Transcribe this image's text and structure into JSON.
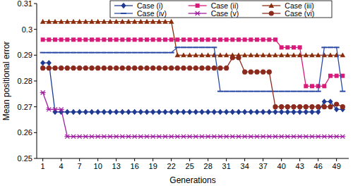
{
  "chart_data": {
    "type": "line",
    "x_label": "Generations",
    "y_label": "Mean positional error",
    "x": [
      1,
      2,
      3,
      4,
      5,
      6,
      7,
      8,
      9,
      10,
      11,
      12,
      13,
      14,
      15,
      16,
      17,
      18,
      19,
      20,
      21,
      22,
      23,
      24,
      25,
      26,
      27,
      28,
      29,
      30,
      31,
      32,
      33,
      34,
      35,
      36,
      37,
      38,
      39,
      40,
      41,
      42,
      43,
      44,
      45,
      46,
      47,
      48,
      49,
      50
    ],
    "xlim": [
      0,
      51
    ],
    "xticks": [
      1,
      4,
      7,
      10,
      13,
      16,
      19,
      22,
      25,
      28,
      31,
      34,
      37,
      40,
      43,
      46,
      49
    ],
    "ylim": [
      0.25,
      0.31
    ],
    "yticks": [
      0.25,
      0.26,
      0.27,
      0.28,
      0.29,
      0.3,
      0.31
    ],
    "grid": false,
    "legend": "top",
    "series": [
      {
        "name": "Case (i)",
        "color": "#1f3a93",
        "marker": "diamond",
        "values": [
          0.287,
          0.287,
          0.268,
          0.268,
          0.268,
          0.268,
          0.268,
          0.268,
          0.268,
          0.268,
          0.268,
          0.268,
          0.268,
          0.268,
          0.268,
          0.268,
          0.268,
          0.268,
          0.268,
          0.268,
          0.268,
          0.268,
          0.268,
          0.268,
          0.268,
          0.268,
          0.268,
          0.268,
          0.268,
          0.268,
          0.268,
          0.268,
          0.268,
          0.268,
          0.268,
          0.268,
          0.268,
          0.268,
          0.268,
          0.268,
          0.268,
          0.268,
          0.268,
          0.268,
          0.268,
          0.268,
          0.272,
          0.272,
          0.269,
          0.269
        ]
      },
      {
        "name": "Case (ii)",
        "color": "#d81b7a",
        "marker": "square",
        "values": [
          0.296,
          0.296,
          0.296,
          0.296,
          0.296,
          0.296,
          0.296,
          0.296,
          0.296,
          0.296,
          0.296,
          0.296,
          0.296,
          0.296,
          0.296,
          0.296,
          0.296,
          0.296,
          0.296,
          0.296,
          0.296,
          0.296,
          0.296,
          0.296,
          0.296,
          0.296,
          0.296,
          0.296,
          0.296,
          0.296,
          0.296,
          0.296,
          0.296,
          0.296,
          0.296,
          0.296,
          0.296,
          0.296,
          0.296,
          0.293,
          0.293,
          0.293,
          0.293,
          0.278,
          0.278,
          0.278,
          0.278,
          0.282,
          0.282,
          0.282
        ]
      },
      {
        "name": "Case (iii)",
        "color": "#8b2c0a",
        "marker": "triangle",
        "values": [
          0.303,
          0.303,
          0.303,
          0.303,
          0.303,
          0.303,
          0.303,
          0.303,
          0.303,
          0.303,
          0.303,
          0.303,
          0.303,
          0.303,
          0.303,
          0.303,
          0.303,
          0.303,
          0.303,
          0.303,
          0.303,
          0.303,
          0.29,
          0.29,
          0.29,
          0.29,
          0.29,
          0.29,
          0.29,
          0.29,
          0.29,
          0.29,
          0.29,
          0.29,
          0.29,
          0.29,
          0.29,
          0.29,
          0.29,
          0.29,
          0.29,
          0.29,
          0.29,
          0.29,
          0.29,
          0.29,
          0.29,
          0.29,
          0.29,
          0.29
        ]
      },
      {
        "name": "Case (iv)",
        "color": "#2b4aa6",
        "marker": "dash",
        "values": [
          0.291,
          0.291,
          0.291,
          0.291,
          0.291,
          0.291,
          0.291,
          0.291,
          0.291,
          0.291,
          0.291,
          0.291,
          0.291,
          0.291,
          0.291,
          0.291,
          0.291,
          0.291,
          0.291,
          0.291,
          0.291,
          0.291,
          0.293,
          0.293,
          0.293,
          0.293,
          0.293,
          0.293,
          0.293,
          0.276,
          0.276,
          0.276,
          0.276,
          0.276,
          0.276,
          0.276,
          0.276,
          0.276,
          0.276,
          0.276,
          0.276,
          0.276,
          0.276,
          0.276,
          0.276,
          0.276,
          0.293,
          0.293,
          0.293,
          0.276
        ]
      },
      {
        "name": "Case (v)",
        "color": "#a01fa0",
        "marker": "asterisk",
        "values": [
          0.2755,
          0.269,
          0.269,
          0.269,
          0.2585,
          0.2585,
          0.2585,
          0.2585,
          0.2585,
          0.2585,
          0.2585,
          0.2585,
          0.2585,
          0.2585,
          0.2585,
          0.2585,
          0.2585,
          0.2585,
          0.2585,
          0.2585,
          0.2585,
          0.2585,
          0.2585,
          0.2585,
          0.2585,
          0.2585,
          0.2585,
          0.2585,
          0.2585,
          0.2585,
          0.2585,
          0.2585,
          0.2585,
          0.2585,
          0.2585,
          0.2585,
          0.2585,
          0.2585,
          0.2585,
          0.2585,
          0.2585,
          0.2585,
          0.2585,
          0.2585,
          0.2585,
          0.2585,
          0.2585,
          0.2585,
          0.2585,
          0.2585
        ]
      },
      {
        "name": "Case (vi)",
        "color": "#8b2a1c",
        "marker": "circle",
        "values": [
          0.285,
          0.285,
          0.285,
          0.285,
          0.285,
          0.285,
          0.285,
          0.285,
          0.285,
          0.285,
          0.285,
          0.285,
          0.285,
          0.285,
          0.285,
          0.285,
          0.285,
          0.285,
          0.285,
          0.285,
          0.285,
          0.285,
          0.285,
          0.285,
          0.285,
          0.285,
          0.285,
          0.285,
          0.285,
          0.285,
          0.285,
          0.289,
          0.289,
          0.2835,
          0.2835,
          0.2835,
          0.2835,
          0.2835,
          0.27,
          0.27,
          0.27,
          0.27,
          0.27,
          0.27,
          0.27,
          0.27,
          0.27,
          0.27,
          0.271,
          0.27
        ]
      }
    ]
  }
}
